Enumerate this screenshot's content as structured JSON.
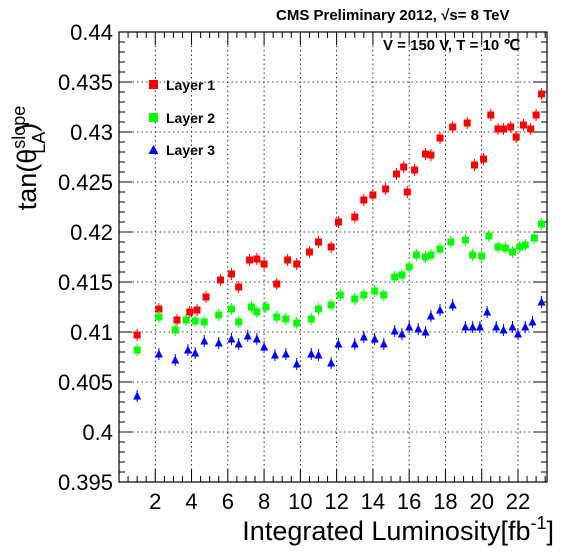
{
  "chart_data": {
    "type": "scatter",
    "header_left": "CMS Preliminary 2012, ",
    "header_sqrt": "√s",
    "header_right": "= 8 TeV",
    "conditions": "V = 150 V, T = 10 ℃",
    "xlabel": "Integrated Luminosity[fb",
    "xlabel_sup": "-1",
    "xlabel_close": "]",
    "ylabel_main": "tan(θ",
    "ylabel_sup": "slope",
    "ylabel_sub": "LA",
    "ylabel_close": ")",
    "xlim": [
      0,
      23.6
    ],
    "ylim": [
      0.395,
      0.44
    ],
    "xticks": [
      2,
      4,
      6,
      8,
      10,
      12,
      14,
      16,
      18,
      20,
      22
    ],
    "yticks": [
      0.395,
      0.4,
      0.405,
      0.41,
      0.415,
      0.42,
      0.425,
      0.43,
      0.435,
      0.44
    ],
    "ytick_labels": [
      "0.395",
      "0.4",
      "0.405",
      "0.41",
      "0.415",
      "0.42",
      "0.425",
      "0.43",
      "0.435",
      "0.44"
    ],
    "grid": true,
    "legend_position": "top-left",
    "series": [
      {
        "name": "Layer 1",
        "marker": "square",
        "color": "#ff0000",
        "points": [
          [
            1.0,
            0.4097
          ],
          [
            2.2,
            0.4123
          ],
          [
            3.2,
            0.4112
          ],
          [
            3.9,
            0.412
          ],
          [
            4.3,
            0.4122
          ],
          [
            4.8,
            0.4135
          ],
          [
            5.6,
            0.4152
          ],
          [
            6.2,
            0.4158
          ],
          [
            6.6,
            0.4145
          ],
          [
            7.2,
            0.4172
          ],
          [
            7.6,
            0.4173
          ],
          [
            8.0,
            0.4168
          ],
          [
            8.7,
            0.4148
          ],
          [
            9.3,
            0.4172
          ],
          [
            9.8,
            0.4168
          ],
          [
            10.5,
            0.418
          ],
          [
            11.0,
            0.419
          ],
          [
            11.7,
            0.4185
          ],
          [
            12.1,
            0.421
          ],
          [
            13.0,
            0.4215
          ],
          [
            13.5,
            0.4232
          ],
          [
            14.0,
            0.4237
          ],
          [
            14.7,
            0.4243
          ],
          [
            15.3,
            0.4258
          ],
          [
            15.7,
            0.4265
          ],
          [
            15.9,
            0.424
          ],
          [
            16.3,
            0.4262
          ],
          [
            16.9,
            0.4278
          ],
          [
            17.2,
            0.4277
          ],
          [
            17.7,
            0.4294
          ],
          [
            18.4,
            0.4305
          ],
          [
            19.2,
            0.4309
          ],
          [
            19.6,
            0.4267
          ],
          [
            20.1,
            0.4273
          ],
          [
            20.5,
            0.4317
          ],
          [
            20.9,
            0.4303
          ],
          [
            21.2,
            0.4303
          ],
          [
            21.6,
            0.4305
          ],
          [
            21.9,
            0.4295
          ],
          [
            22.3,
            0.4307
          ],
          [
            22.7,
            0.4303
          ],
          [
            23.0,
            0.4317
          ],
          [
            23.3,
            0.4338
          ]
        ]
      },
      {
        "name": "Layer 2",
        "marker": "square",
        "color": "#00ff00",
        "points": [
          [
            1.0,
            0.4082
          ],
          [
            2.2,
            0.4115
          ],
          [
            3.1,
            0.4102
          ],
          [
            3.7,
            0.4112
          ],
          [
            4.2,
            0.4111
          ],
          [
            4.7,
            0.411
          ],
          [
            5.5,
            0.4117
          ],
          [
            6.2,
            0.4123
          ],
          [
            6.6,
            0.411
          ],
          [
            7.3,
            0.4125
          ],
          [
            7.6,
            0.412
          ],
          [
            8.1,
            0.4125
          ],
          [
            8.7,
            0.4115
          ],
          [
            9.2,
            0.4113
          ],
          [
            9.8,
            0.4109
          ],
          [
            10.6,
            0.4113
          ],
          [
            11.0,
            0.4123
          ],
          [
            11.7,
            0.4127
          ],
          [
            12.2,
            0.4137
          ],
          [
            13.0,
            0.4133
          ],
          [
            13.5,
            0.4137
          ],
          [
            14.1,
            0.4141
          ],
          [
            14.6,
            0.4137
          ],
          [
            15.2,
            0.4155
          ],
          [
            15.6,
            0.4157
          ],
          [
            16.0,
            0.4165
          ],
          [
            16.4,
            0.4177
          ],
          [
            16.9,
            0.4175
          ],
          [
            17.2,
            0.4177
          ],
          [
            17.7,
            0.4183
          ],
          [
            18.3,
            0.419
          ],
          [
            19.1,
            0.4192
          ],
          [
            19.5,
            0.4177
          ],
          [
            20.0,
            0.4176
          ],
          [
            20.4,
            0.4196
          ],
          [
            20.9,
            0.4185
          ],
          [
            21.3,
            0.4184
          ],
          [
            21.7,
            0.418
          ],
          [
            22.1,
            0.4185
          ],
          [
            22.4,
            0.4187
          ],
          [
            22.9,
            0.4194
          ],
          [
            23.3,
            0.4208
          ]
        ]
      },
      {
        "name": "Layer 3",
        "marker": "triangle",
        "color": "#0000ff",
        "points": [
          [
            1.0,
            0.4036
          ],
          [
            2.2,
            0.4078
          ],
          [
            3.1,
            0.4072
          ],
          [
            3.8,
            0.4082
          ],
          [
            4.2,
            0.4079
          ],
          [
            4.7,
            0.4091
          ],
          [
            5.5,
            0.4089
          ],
          [
            6.2,
            0.4093
          ],
          [
            6.6,
            0.4088
          ],
          [
            7.1,
            0.4096
          ],
          [
            7.6,
            0.4093
          ],
          [
            8.0,
            0.4085
          ],
          [
            8.6,
            0.4077
          ],
          [
            9.2,
            0.4078
          ],
          [
            9.8,
            0.4068
          ],
          [
            10.6,
            0.4078
          ],
          [
            11.0,
            0.4077
          ],
          [
            11.7,
            0.4069
          ],
          [
            12.1,
            0.4088
          ],
          [
            13.0,
            0.4088
          ],
          [
            13.5,
            0.4095
          ],
          [
            14.1,
            0.4093
          ],
          [
            14.6,
            0.4088
          ],
          [
            15.2,
            0.4101
          ],
          [
            15.6,
            0.4098
          ],
          [
            16.0,
            0.4105
          ],
          [
            16.5,
            0.4103
          ],
          [
            16.9,
            0.41
          ],
          [
            17.2,
            0.4116
          ],
          [
            17.7,
            0.4122
          ],
          [
            18.4,
            0.4127
          ],
          [
            19.1,
            0.4105
          ],
          [
            19.5,
            0.4105
          ],
          [
            19.9,
            0.4105
          ],
          [
            20.3,
            0.412
          ],
          [
            20.8,
            0.4105
          ],
          [
            21.2,
            0.4102
          ],
          [
            21.7,
            0.4105
          ],
          [
            22.0,
            0.4098
          ],
          [
            22.4,
            0.4105
          ],
          [
            22.8,
            0.411
          ],
          [
            23.3,
            0.413
          ]
        ]
      }
    ]
  }
}
